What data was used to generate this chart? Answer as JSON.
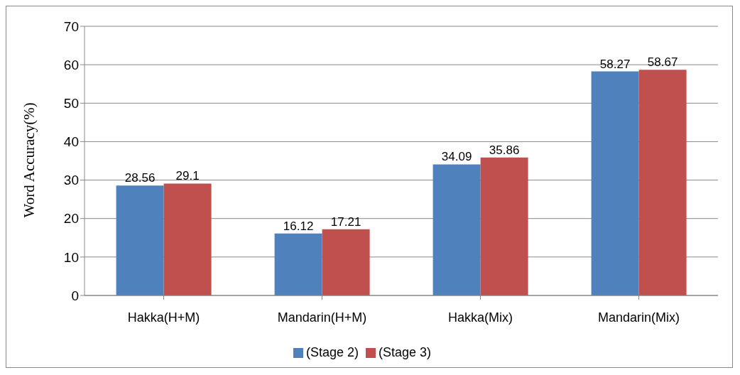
{
  "chart_data": {
    "type": "bar",
    "ylabel": "Word Accuracy(%)",
    "categories": [
      "Hakka(H+M)",
      "Mandarin(H+M)",
      "Hakka(Mix)",
      "Mandarin(Mix)"
    ],
    "series": [
      {
        "name": "(Stage 2)",
        "color": "#4f81bd",
        "values": [
          28.56,
          16.12,
          34.09,
          58.27
        ]
      },
      {
        "name": "(Stage 3)",
        "color": "#c0504d",
        "values": [
          29.1,
          17.21,
          35.86,
          58.67
        ]
      }
    ],
    "ylim": [
      0,
      70
    ],
    "yticks": [
      0,
      10,
      20,
      30,
      40,
      50,
      60,
      70
    ],
    "grid": "y",
    "legend": "bottom",
    "data_labels": true
  }
}
